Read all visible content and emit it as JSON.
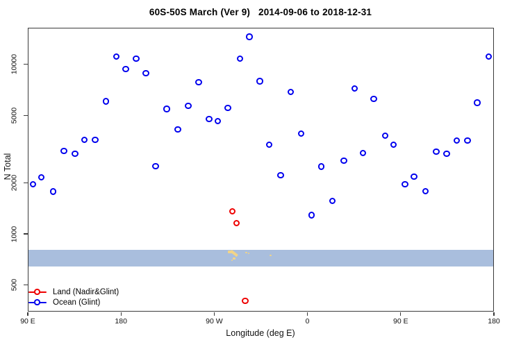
{
  "title": "60S-50S March (Ver 9)   2014-09-06 to 2018-12-31",
  "x_axis": {
    "title": "Longitude (deg E)",
    "ticks": [
      {
        "lon": 90,
        "label": "90 E"
      },
      {
        "lon": 180,
        "label": "180"
      },
      {
        "lon": 270,
        "label": "90 W"
      },
      {
        "lon": 360,
        "label": "0"
      },
      {
        "lon": 450,
        "label": "90 E"
      },
      {
        "lon": 540,
        "label": "180"
      }
    ]
  },
  "y_axis": {
    "title": "N Total",
    "scale": "log",
    "tick_labels": [
      "500",
      "1000",
      "2000",
      "5000",
      "10000"
    ]
  },
  "legend": {
    "position": "bottom-left",
    "items": [
      {
        "id": "land",
        "label": "Land (Nadir&Glint)",
        "color": "#ee0000"
      },
      {
        "id": "ocean",
        "label": "Ocean (Glint)",
        "color": "#0000ee"
      }
    ]
  },
  "chart_data": {
    "type": "scatter",
    "title": "60S-50S March (Ver 9)   2014-09-06 to 2018-12-31",
    "xlabel": "Longitude (deg E)",
    "ylabel": "N Total",
    "x_range": [
      90,
      540
    ],
    "y_scale": "log",
    "y_ticks": [
      500,
      1000,
      2000,
      5000,
      10000
    ],
    "grid": false,
    "marker": "open-circle",
    "series": [
      {
        "name": "Land (Nadir&Glint)",
        "color": "#ee0000",
        "points": [
          {
            "lon": 288.0,
            "n": 1350
          },
          {
            "lon": 292.0,
            "n": 1150
          },
          {
            "lon": 300.5,
            "n": 400
          }
        ]
      },
      {
        "name": "Ocean (Glint)",
        "color": "#0000ee",
        "points": [
          {
            "lon": 95.5,
            "n": 1950
          },
          {
            "lon": 103.5,
            "n": 2140
          },
          {
            "lon": 115.0,
            "n": 1760
          },
          {
            "lon": 125.5,
            "n": 3060
          },
          {
            "lon": 136.0,
            "n": 2950
          },
          {
            "lon": 145.0,
            "n": 3560
          },
          {
            "lon": 155.5,
            "n": 3560
          },
          {
            "lon": 166.0,
            "n": 6000
          },
          {
            "lon": 176.0,
            "n": 11000
          },
          {
            "lon": 185.0,
            "n": 9300
          },
          {
            "lon": 195.0,
            "n": 10700
          },
          {
            "lon": 204.5,
            "n": 8800
          },
          {
            "lon": 214.0,
            "n": 2490
          },
          {
            "lon": 224.5,
            "n": 5400
          },
          {
            "lon": 235.5,
            "n": 4100
          },
          {
            "lon": 245.5,
            "n": 5640
          },
          {
            "lon": 255.5,
            "n": 7760
          },
          {
            "lon": 265.5,
            "n": 4710
          },
          {
            "lon": 274.0,
            "n": 4580
          },
          {
            "lon": 283.5,
            "n": 5480
          },
          {
            "lon": 295.5,
            "n": 10700
          },
          {
            "lon": 304.5,
            "n": 14400
          },
          {
            "lon": 314.5,
            "n": 7900
          },
          {
            "lon": 323.5,
            "n": 3330
          },
          {
            "lon": 334.5,
            "n": 2200
          },
          {
            "lon": 344.5,
            "n": 6800
          },
          {
            "lon": 354.5,
            "n": 3870
          },
          {
            "lon": 364.5,
            "n": 1280
          },
          {
            "lon": 374.0,
            "n": 2470
          },
          {
            "lon": 384.5,
            "n": 1550
          },
          {
            "lon": 395.5,
            "n": 2680
          },
          {
            "lon": 406.0,
            "n": 7130
          },
          {
            "lon": 414.0,
            "n": 2980
          },
          {
            "lon": 424.5,
            "n": 6190
          },
          {
            "lon": 435.5,
            "n": 3760
          },
          {
            "lon": 443.5,
            "n": 3330
          },
          {
            "lon": 454.5,
            "n": 1950
          },
          {
            "lon": 463.5,
            "n": 2160
          },
          {
            "lon": 474.5,
            "n": 1775
          },
          {
            "lon": 485.0,
            "n": 3030
          },
          {
            "lon": 495.0,
            "n": 2950
          },
          {
            "lon": 504.5,
            "n": 3520
          },
          {
            "lon": 515.0,
            "n": 3520
          },
          {
            "lon": 524.5,
            "n": 5900
          },
          {
            "lon": 535.5,
            "n": 11000
          }
        ]
      }
    ],
    "map_band": {
      "n_top": 810,
      "n_bottom": 650,
      "ocean_color": "#a9bedd",
      "land_color": "#f2d488",
      "features": [
        {
          "name": "south-america-tip",
          "lon_from": 282.5,
          "lon_to": 293.5
        },
        {
          "name": "falkland-islands",
          "lon_from": 299.5,
          "lon_to": 301.5
        },
        {
          "name": "south-georgia",
          "lon_from": 322.5,
          "lon_to": 323.5
        }
      ]
    }
  }
}
